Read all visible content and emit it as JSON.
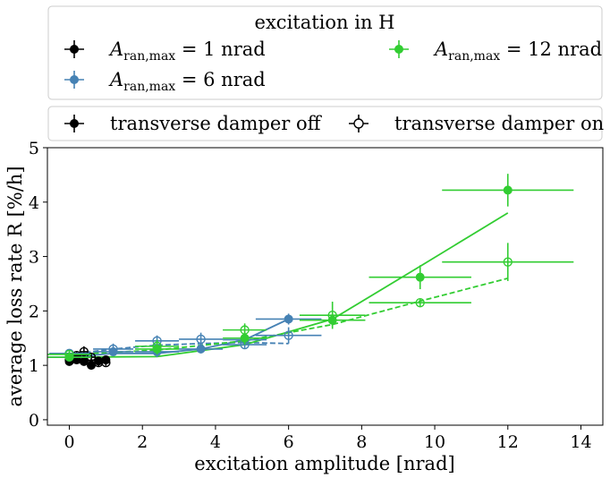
{
  "chart_data": {
    "type": "scatter",
    "xlabel": "excitation amplitude [nrad]",
    "ylabel": "average loss rate R [%/h]",
    "xlim": [
      -0.6,
      14.6
    ],
    "ylim": [
      -0.1,
      5.0
    ],
    "xticks": [
      0,
      2,
      4,
      6,
      8,
      10,
      12,
      14
    ],
    "yticks": [
      0,
      1,
      2,
      3,
      4,
      5
    ],
    "grid": false,
    "legend1": {
      "placement": "above plot",
      "title": "excitation in H",
      "entries": [
        {
          "sym": "A",
          "sub": "ran,max",
          "text": " = 1 nrad",
          "color": "#000000"
        },
        {
          "sym": "A",
          "sub": "ran,max",
          "text": " = 6 nrad",
          "color": "#4682b4"
        },
        {
          "sym": "A",
          "sub": "ran,max",
          "text": " = 12 nrad",
          "color": "#32cd32"
        }
      ]
    },
    "legend2": {
      "placement": "above plot",
      "entries": [
        {
          "label": "transverse damper off",
          "fill": "filled"
        },
        {
          "label": "transverse damper on",
          "fill": "open"
        }
      ]
    },
    "series": [
      {
        "name": "A_ran,max = 1 nrad, damper off",
        "color": "#000000",
        "marker": "filled",
        "line": "solid",
        "points": [
          {
            "x": 0.0,
            "y": 1.07,
            "xerr": 0.1,
            "yerr": 0.05
          },
          {
            "x": 0.2,
            "y": 1.1,
            "xerr": 0.1,
            "yerr": 0.06
          },
          {
            "x": 0.4,
            "y": 1.07,
            "xerr": 0.1,
            "yerr": 0.07
          },
          {
            "x": 0.6,
            "y": 1.0,
            "xerr": 0.1,
            "yerr": 0.06
          },
          {
            "x": 0.8,
            "y": 1.08,
            "xerr": 0.1,
            "yerr": 0.07
          },
          {
            "x": 1.0,
            "y": 1.1,
            "xerr": 0.1,
            "yerr": 0.06
          }
        ]
      },
      {
        "name": "A_ran,max = 1 nrad, damper on",
        "color": "#000000",
        "marker": "open",
        "line": "dashed",
        "points": [
          {
            "x": 0.0,
            "y": 1.1,
            "xerr": 0.1,
            "yerr": 0.06
          },
          {
            "x": 0.2,
            "y": 1.18,
            "xerr": 0.1,
            "yerr": 0.08
          },
          {
            "x": 0.4,
            "y": 1.25,
            "xerr": 0.1,
            "yerr": 0.1
          },
          {
            "x": 0.6,
            "y": 1.15,
            "xerr": 0.1,
            "yerr": 0.08
          },
          {
            "x": 0.8,
            "y": 1.05,
            "xerr": 0.1,
            "yerr": 0.07
          },
          {
            "x": 1.0,
            "y": 1.05,
            "xerr": 0.1,
            "yerr": 0.06
          }
        ]
      },
      {
        "name": "A_ran,max = 6 nrad, damper off",
        "color": "#4682b4",
        "marker": "filled",
        "line": "solid",
        "points": [
          {
            "x": 0.0,
            "y": 1.15,
            "xerr": 0.55,
            "yerr": 0.05
          },
          {
            "x": 1.2,
            "y": 1.25,
            "xerr": 0.55,
            "yerr": 0.08
          },
          {
            "x": 2.4,
            "y": 1.25,
            "xerr": 0.6,
            "yerr": 0.1
          },
          {
            "x": 3.6,
            "y": 1.3,
            "xerr": 0.6,
            "yerr": 0.08
          },
          {
            "x": 4.8,
            "y": 1.47,
            "xerr": 0.6,
            "yerr": 0.1
          },
          {
            "x": 6.0,
            "y": 1.85,
            "xerr": 0.9,
            "yerr": 0.1
          }
        ]
      },
      {
        "name": "A_ran,max = 6 nrad, damper on",
        "color": "#4682b4",
        "marker": "open",
        "line": "dashed",
        "points": [
          {
            "x": 0.0,
            "y": 1.22,
            "xerr": 0.55,
            "yerr": 0.06
          },
          {
            "x": 1.2,
            "y": 1.3,
            "xerr": 0.55,
            "yerr": 0.1
          },
          {
            "x": 2.4,
            "y": 1.45,
            "xerr": 0.6,
            "yerr": 0.1
          },
          {
            "x": 3.6,
            "y": 1.48,
            "xerr": 0.6,
            "yerr": 0.12
          },
          {
            "x": 4.8,
            "y": 1.38,
            "xerr": 0.6,
            "yerr": 0.08
          },
          {
            "x": 6.0,
            "y": 1.55,
            "xerr": 0.9,
            "yerr": 0.15
          }
        ]
      },
      {
        "name": "A_ran,max = 12 nrad, damper off",
        "color": "#32cd32",
        "marker": "filled",
        "line": "solid",
        "points": [
          {
            "x": 0.0,
            "y": 1.15,
            "xerr": 0.6,
            "yerr": 0.06
          },
          {
            "x": 2.4,
            "y": 1.3,
            "xerr": 0.6,
            "yerr": 0.1
          },
          {
            "x": 4.8,
            "y": 1.5,
            "xerr": 0.6,
            "yerr": 0.12
          },
          {
            "x": 7.2,
            "y": 1.83,
            "xerr": 0.9,
            "yerr": 0.12
          },
          {
            "x": 9.6,
            "y": 2.62,
            "xerr": 1.4,
            "yerr": 0.22
          },
          {
            "x": 12.0,
            "y": 4.22,
            "xerr": 1.8,
            "yerr": 0.3
          }
        ]
      },
      {
        "name": "A_ran,max = 12 nrad, damper on",
        "color": "#32cd32",
        "marker": "open",
        "line": "dashed",
        "points": [
          {
            "x": 0.0,
            "y": 1.2,
            "xerr": 0.6,
            "yerr": 0.06
          },
          {
            "x": 2.4,
            "y": 1.35,
            "xerr": 0.6,
            "yerr": 0.12
          },
          {
            "x": 4.8,
            "y": 1.65,
            "xerr": 0.6,
            "yerr": 0.12
          },
          {
            "x": 7.2,
            "y": 1.92,
            "xerr": 0.9,
            "yerr": 0.25
          },
          {
            "x": 9.6,
            "y": 2.15,
            "xerr": 1.4,
            "yerr": 0.08
          },
          {
            "x": 12.0,
            "y": 2.9,
            "xerr": 1.8,
            "yerr": 0.35
          }
        ]
      }
    ],
    "fits": [
      {
        "color": "#000000",
        "line": "solid",
        "points": [
          [
            0,
            1.05
          ],
          [
            1.0,
            1.12
          ]
        ]
      },
      {
        "color": "#000000",
        "line": "dashed",
        "points": [
          [
            0,
            1.08
          ],
          [
            1.0,
            1.1
          ]
        ]
      },
      {
        "color": "#4682b4",
        "line": "solid",
        "points": [
          [
            0,
            1.15
          ],
          [
            1.2,
            1.22
          ],
          [
            2.4,
            1.22
          ],
          [
            3.6,
            1.3
          ],
          [
            4.8,
            1.47
          ],
          [
            6.0,
            1.85
          ]
        ]
      },
      {
        "color": "#4682b4",
        "line": "dashed",
        "points": [
          [
            0,
            1.2
          ],
          [
            1.2,
            1.3
          ],
          [
            2.4,
            1.37
          ],
          [
            3.6,
            1.4
          ],
          [
            4.8,
            1.42
          ],
          [
            6.0,
            1.4
          ]
        ]
      },
      {
        "color": "#32cd32",
        "line": "solid",
        "points": [
          [
            0,
            1.15
          ],
          [
            2.4,
            1.16
          ],
          [
            4.8,
            1.38
          ],
          [
            7.2,
            1.85
          ],
          [
            9.6,
            2.82
          ],
          [
            12.0,
            3.8
          ]
        ]
      },
      {
        "color": "#32cd32",
        "line": "dashed",
        "points": [
          [
            0,
            1.2
          ],
          [
            2.4,
            1.28
          ],
          [
            4.8,
            1.45
          ],
          [
            7.2,
            1.75
          ],
          [
            9.6,
            2.18
          ],
          [
            12.0,
            2.6
          ]
        ]
      }
    ]
  }
}
